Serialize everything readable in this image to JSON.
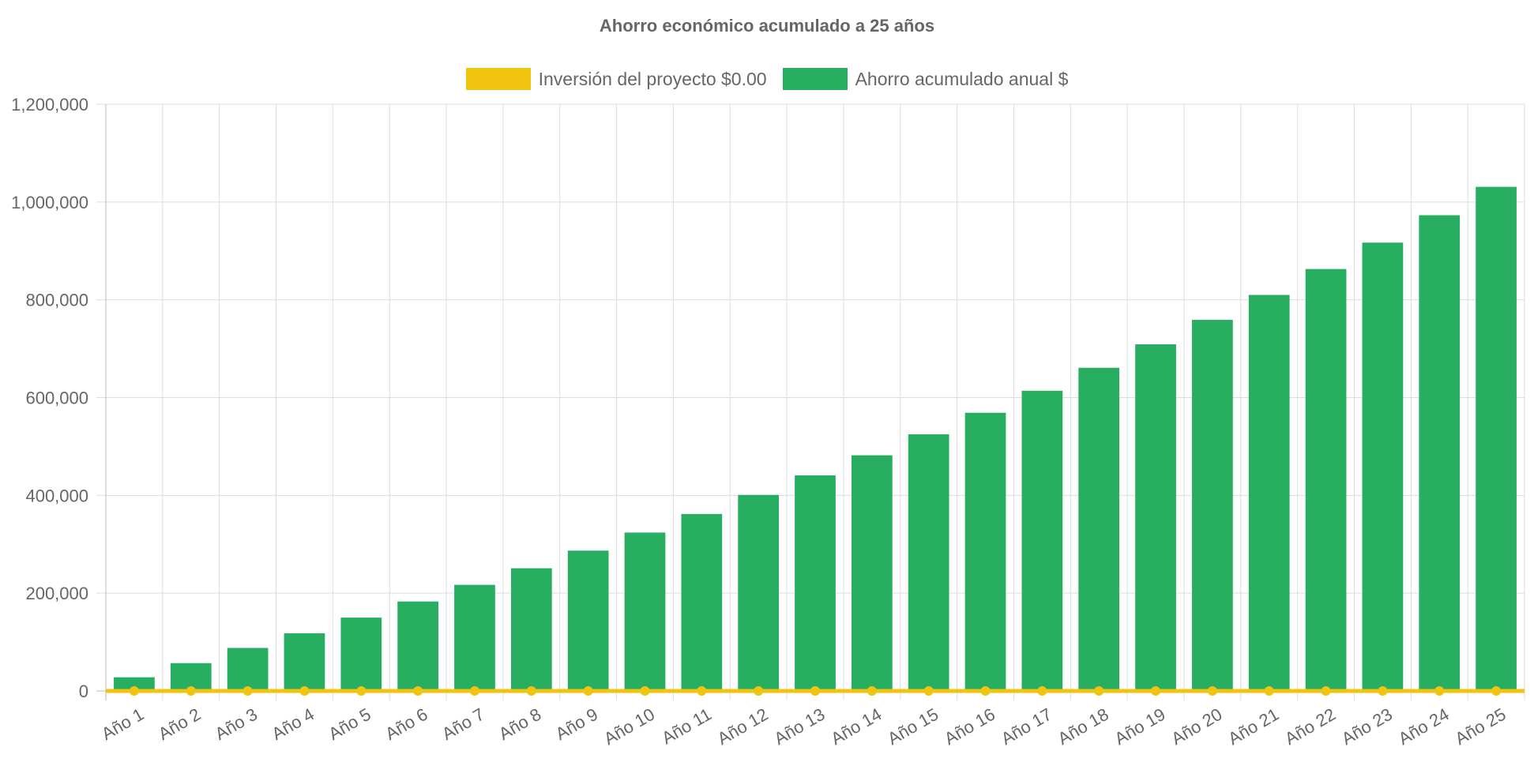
{
  "chart_data": {
    "type": "bar",
    "title": "Ahorro económico acumulado a 25 años",
    "categories": [
      "Año 1",
      "Año 2",
      "Año 3",
      "Año 4",
      "Año 5",
      "Año 6",
      "Año 7",
      "Año 8",
      "Año 9",
      "Año 10",
      "Año 11",
      "Año 12",
      "Año 13",
      "Año 14",
      "Año 15",
      "Año 16",
      "Año 17",
      "Año 18",
      "Año 19",
      "Año 20",
      "Año 21",
      "Año 22",
      "Año 23",
      "Año 24",
      "Año 25"
    ],
    "series": [
      {
        "name": "Inversión del proyecto $0.00",
        "type": "line",
        "color": "#f1c40f",
        "values": [
          0,
          0,
          0,
          0,
          0,
          0,
          0,
          0,
          0,
          0,
          0,
          0,
          0,
          0,
          0,
          0,
          0,
          0,
          0,
          0,
          0,
          0,
          0,
          0,
          0
        ]
      },
      {
        "name": "Ahorro acumulado anual $",
        "type": "bar",
        "color": "#27ae60",
        "values": [
          28000,
          57000,
          88000,
          118000,
          150000,
          183000,
          217000,
          251000,
          287000,
          324000,
          362000,
          401000,
          441000,
          482000,
          525000,
          569000,
          614000,
          661000,
          709000,
          759000,
          810000,
          863000,
          917000,
          973000,
          1031000
        ]
      }
    ],
    "xlabel": "",
    "ylabel": "",
    "ylim": [
      0,
      1200000
    ],
    "yticks": [
      "0",
      "200,000",
      "400,000",
      "600,000",
      "800,000",
      "1,000,000",
      "1,200,000"
    ],
    "grid": true,
    "legend": "top"
  }
}
